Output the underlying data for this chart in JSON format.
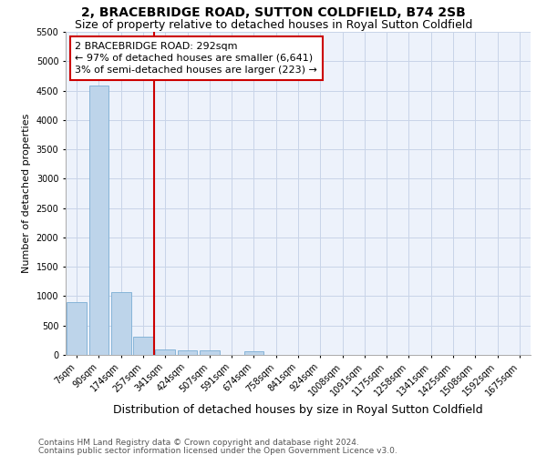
{
  "title1": "2, BRACEBRIDGE ROAD, SUTTON COLDFIELD, B74 2SB",
  "title2": "Size of property relative to detached houses in Royal Sutton Coldfield",
  "xlabel": "Distribution of detached houses by size in Royal Sutton Coldfield",
  "ylabel": "Number of detached properties",
  "footer1": "Contains HM Land Registry data © Crown copyright and database right 2024.",
  "footer2": "Contains public sector information licensed under the Open Government Licence v3.0.",
  "annotation_title": "2 BRACEBRIDGE ROAD: 292sqm",
  "annotation_line1": "← 97% of detached houses are smaller (6,641)",
  "annotation_line2": "3% of semi-detached houses are larger (223) →",
  "categories": [
    "7sqm",
    "90sqm",
    "174sqm",
    "257sqm",
    "341sqm",
    "424sqm",
    "507sqm",
    "591sqm",
    "674sqm",
    "758sqm",
    "841sqm",
    "924sqm",
    "1008sqm",
    "1091sqm",
    "1175sqm",
    "1258sqm",
    "1341sqm",
    "1425sqm",
    "1508sqm",
    "1592sqm",
    "1675sqm"
  ],
  "bar_values": [
    900,
    4580,
    1075,
    310,
    100,
    80,
    70,
    0,
    65,
    0,
    0,
    0,
    0,
    0,
    0,
    0,
    0,
    0,
    0,
    0,
    0
  ],
  "bar_color": "#bdd4ea",
  "bar_edge_color": "#7aadd4",
  "vline_color": "#cc0000",
  "vline_x": 3.5,
  "ylim": [
    0,
    5500
  ],
  "yticks": [
    0,
    500,
    1000,
    1500,
    2000,
    2500,
    3000,
    3500,
    4000,
    4500,
    5000,
    5500
  ],
  "annotation_box_color": "#ffffff",
  "annotation_box_edge": "#cc0000",
  "bg_color": "#edf2fb",
  "grid_color": "#c8d4e8",
  "title_fontsize": 10,
  "subtitle_fontsize": 9,
  "ylabel_fontsize": 8,
  "xlabel_fontsize": 9,
  "tick_fontsize": 7,
  "annotation_fontsize": 8,
  "footer_fontsize": 6.5
}
